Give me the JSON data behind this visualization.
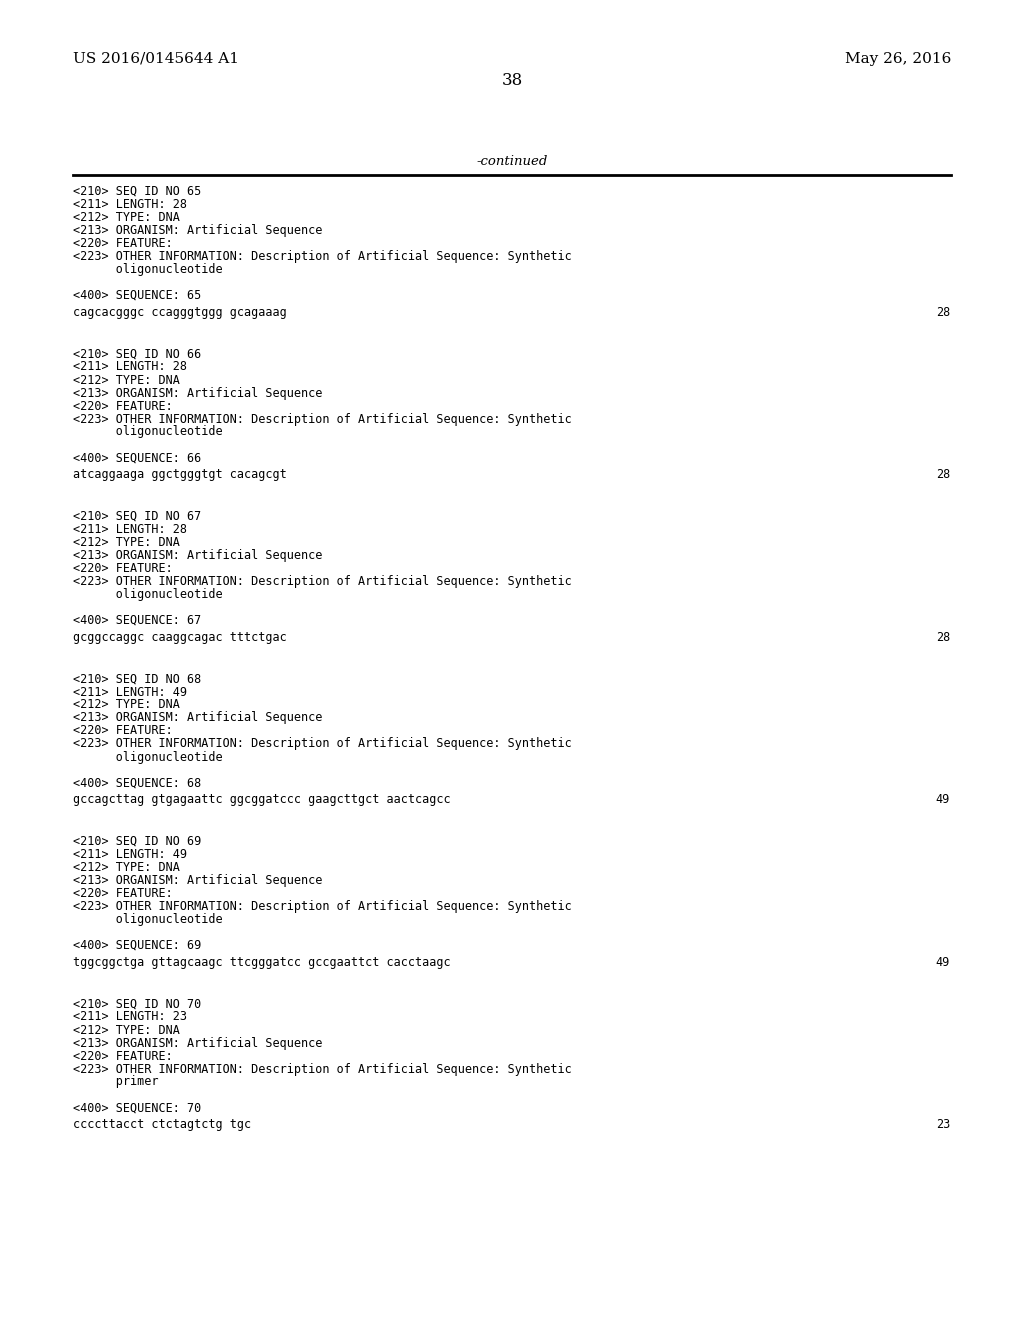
{
  "header_left": "US 2016/0145644 A1",
  "header_right": "May 26, 2016",
  "page_number": "38",
  "continued_text": "-continued",
  "background_color": "#ffffff",
  "text_color": "#000000",
  "content_blocks": [
    {
      "lines": [
        "<210> SEQ ID NO 65",
        "<211> LENGTH: 28",
        "<212> TYPE: DNA",
        "<213> ORGANISM: Artificial Sequence",
        "<220> FEATURE:",
        "<223> OTHER INFORMATION: Description of Artificial Sequence: Synthetic",
        "      oligonucleotide"
      ],
      "sequence_label": "<400> SEQUENCE: 65",
      "sequence_data": "cagcacgggc ccagggtggg gcagaaag",
      "sequence_num": "28"
    },
    {
      "lines": [
        "<210> SEQ ID NO 66",
        "<211> LENGTH: 28",
        "<212> TYPE: DNA",
        "<213> ORGANISM: Artificial Sequence",
        "<220> FEATURE:",
        "<223> OTHER INFORMATION: Description of Artificial Sequence: Synthetic",
        "      oligonucleotide"
      ],
      "sequence_label": "<400> SEQUENCE: 66",
      "sequence_data": "atcaggaaga ggctgggtgt cacagcgt",
      "sequence_num": "28"
    },
    {
      "lines": [
        "<210> SEQ ID NO 67",
        "<211> LENGTH: 28",
        "<212> TYPE: DNA",
        "<213> ORGANISM: Artificial Sequence",
        "<220> FEATURE:",
        "<223> OTHER INFORMATION: Description of Artificial Sequence: Synthetic",
        "      oligonucleotide"
      ],
      "sequence_label": "<400> SEQUENCE: 67",
      "sequence_data": "gcggccaggc caaggcagac tttctgac",
      "sequence_num": "28"
    },
    {
      "lines": [
        "<210> SEQ ID NO 68",
        "<211> LENGTH: 49",
        "<212> TYPE: DNA",
        "<213> ORGANISM: Artificial Sequence",
        "<220> FEATURE:",
        "<223> OTHER INFORMATION: Description of Artificial Sequence: Synthetic",
        "      oligonucleotide"
      ],
      "sequence_label": "<400> SEQUENCE: 68",
      "sequence_data": "gccagcttag gtgagaattc ggcggatccc gaagcttgct aactcagcc",
      "sequence_num": "49"
    },
    {
      "lines": [
        "<210> SEQ ID NO 69",
        "<211> LENGTH: 49",
        "<212> TYPE: DNA",
        "<213> ORGANISM: Artificial Sequence",
        "<220> FEATURE:",
        "<223> OTHER INFORMATION: Description of Artificial Sequence: Synthetic",
        "      oligonucleotide"
      ],
      "sequence_label": "<400> SEQUENCE: 69",
      "sequence_data": "tggcggctga gttagcaagc ttcgggatcc gccgaattct cacctaagc",
      "sequence_num": "49"
    },
    {
      "lines": [
        "<210> SEQ ID NO 70",
        "<211> LENGTH: 23",
        "<212> TYPE: DNA",
        "<213> ORGANISM: Artificial Sequence",
        "<220> FEATURE:",
        "<223> OTHER INFORMATION: Description of Artificial Sequence: Synthetic",
        "      primer"
      ],
      "sequence_label": "<400> SEQUENCE: 70",
      "sequence_data": "ccccttacct ctctagtctg tgc",
      "sequence_num": "23"
    }
  ]
}
